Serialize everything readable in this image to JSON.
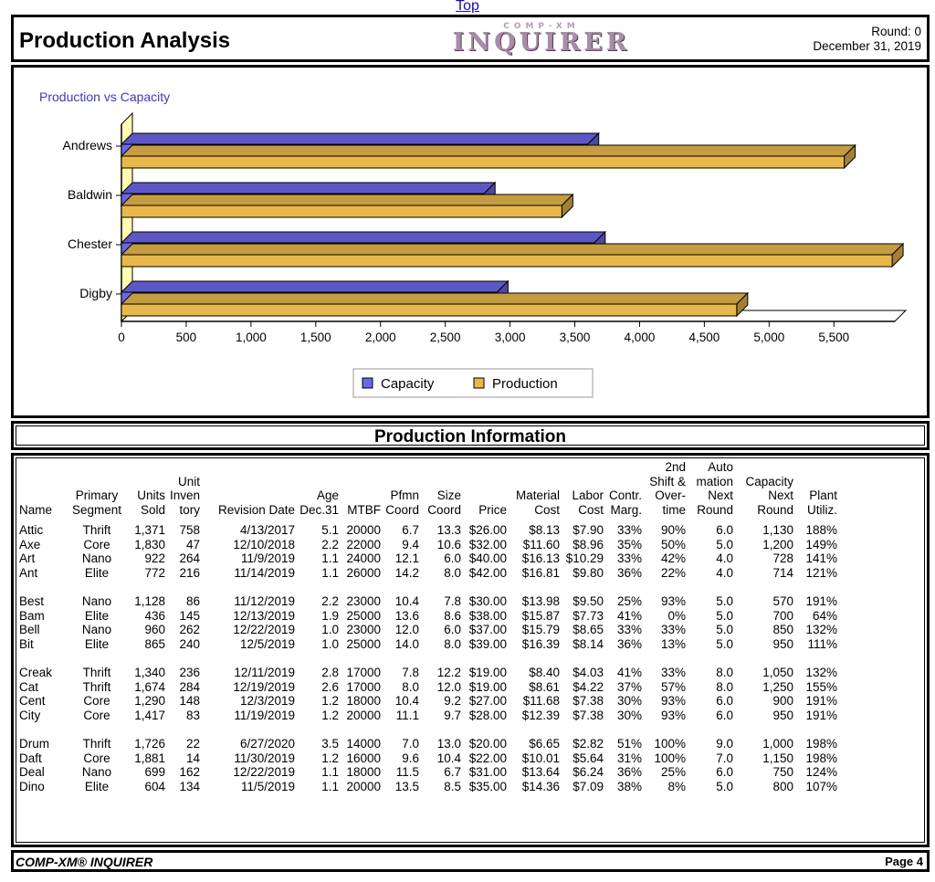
{
  "top_link": "Top",
  "header": {
    "title": "Production Analysis",
    "logo_small": "COMP-XM",
    "logo_big": "INQUIRER",
    "round": "Round: 0",
    "date": "December 31, 2019"
  },
  "chart_data": {
    "type": "bar",
    "orientation": "horizontal",
    "title": "Production vs Capacity",
    "categories": [
      "Andrews",
      "Baldwin",
      "Chester",
      "Digby"
    ],
    "series": [
      {
        "name": "Capacity",
        "color": "#6b68e8",
        "values": [
          3600,
          2800,
          3650,
          2900
        ]
      },
      {
        "name": "Production",
        "color": "#e8b84a",
        "values": [
          5580,
          3400,
          5950,
          4750
        ]
      }
    ],
    "xlim": [
      0,
      5900
    ],
    "xticks": [
      "0",
      "500",
      "1,000",
      "1,500",
      "2,000",
      "2,500",
      "3,000",
      "3,500",
      "4,000",
      "4,500",
      "5,000",
      "5,500"
    ],
    "xtick_values": [
      0,
      500,
      1000,
      1500,
      2000,
      2500,
      3000,
      3500,
      4000,
      4500,
      5000,
      5500
    ],
    "legend": [
      "Capacity",
      "Production"
    ],
    "legend_position": "bottom"
  },
  "info_title": "Production Information",
  "table": {
    "headers": {
      "name": "Name",
      "segment": [
        "Primary",
        "Segment"
      ],
      "units": [
        "Units",
        "Sold"
      ],
      "inventory": [
        "Unit",
        "Inven",
        "tory"
      ],
      "revision": "Revision Date",
      "age": [
        "Age",
        "Dec.31"
      ],
      "mtbf": "MTBF",
      "pfmn": [
        "Pfmn",
        "Coord"
      ],
      "size": [
        "Size",
        "Coord"
      ],
      "price": "Price",
      "material": [
        "Material",
        "Cost"
      ],
      "labor": [
        "Labor",
        "Cost"
      ],
      "contr": [
        "Contr.",
        "Marg."
      ],
      "shift": [
        "2nd",
        "Shift &",
        "Over-",
        "time"
      ],
      "auto": [
        "Auto",
        "mation",
        "Next",
        "Round"
      ],
      "capacity": [
        "Capacity",
        "Next",
        "Round"
      ],
      "plant": [
        "Plant",
        "Utiliz."
      ]
    },
    "groups": [
      [
        [
          "Attic",
          "Thrift",
          "1,371",
          "758",
          "4/13/2017",
          "5.1",
          "20000",
          "6.7",
          "13.3",
          "$26.00",
          "$8.13",
          "$7.90",
          "33%",
          "90%",
          "6.0",
          "1,130",
          "188%"
        ],
        [
          "Axe",
          "Core",
          "1,830",
          "47",
          "12/10/2018",
          "2.2",
          "22000",
          "9.4",
          "10.6",
          "$32.00",
          "$11.60",
          "$8.96",
          "35%",
          "50%",
          "5.0",
          "1,200",
          "149%"
        ],
        [
          "Art",
          "Nano",
          "922",
          "264",
          "11/9/2019",
          "1.1",
          "24000",
          "12.1",
          "6.0",
          "$40.00",
          "$16.13",
          "$10.29",
          "33%",
          "42%",
          "4.0",
          "728",
          "141%"
        ],
        [
          "Ant",
          "Elite",
          "772",
          "216",
          "11/14/2019",
          "1.1",
          "26000",
          "14.2",
          "8.0",
          "$42.00",
          "$16.81",
          "$9.80",
          "36%",
          "22%",
          "4.0",
          "714",
          "121%"
        ]
      ],
      [
        [
          "Best",
          "Nano",
          "1,128",
          "86",
          "11/12/2019",
          "2.2",
          "23000",
          "10.4",
          "7.8",
          "$30.00",
          "$13.98",
          "$9.50",
          "25%",
          "93%",
          "5.0",
          "570",
          "191%"
        ],
        [
          "Bam",
          "Elite",
          "436",
          "145",
          "12/13/2019",
          "1.9",
          "25000",
          "13.6",
          "8.6",
          "$38.00",
          "$15.87",
          "$7.73",
          "41%",
          "0%",
          "5.0",
          "700",
          "64%"
        ],
        [
          "Bell",
          "Nano",
          "960",
          "262",
          "12/22/2019",
          "1.0",
          "23000",
          "12.0",
          "6.0",
          "$37.00",
          "$15.79",
          "$8.65",
          "33%",
          "33%",
          "5.0",
          "850",
          "132%"
        ],
        [
          "Bit",
          "Elite",
          "865",
          "240",
          "12/5/2019",
          "1.0",
          "25000",
          "14.0",
          "8.0",
          "$39.00",
          "$16.39",
          "$8.14",
          "36%",
          "13%",
          "5.0",
          "950",
          "111%"
        ]
      ],
      [
        [
          "Creak",
          "Thrift",
          "1,340",
          "236",
          "12/11/2019",
          "2.8",
          "17000",
          "7.8",
          "12.2",
          "$19.00",
          "$8.40",
          "$4.03",
          "41%",
          "33%",
          "8.0",
          "1,050",
          "132%"
        ],
        [
          "Cat",
          "Thrift",
          "1,674",
          "284",
          "12/19/2019",
          "2.6",
          "17000",
          "8.0",
          "12.0",
          "$19.00",
          "$8.61",
          "$4.22",
          "37%",
          "57%",
          "8.0",
          "1,250",
          "155%"
        ],
        [
          "Cent",
          "Core",
          "1,290",
          "148",
          "12/3/2019",
          "1.2",
          "18000",
          "10.4",
          "9.2",
          "$27.00",
          "$11.68",
          "$7.38",
          "30%",
          "93%",
          "6.0",
          "900",
          "191%"
        ],
        [
          "City",
          "Core",
          "1,417",
          "83",
          "11/19/2019",
          "1.2",
          "20000",
          "11.1",
          "9.7",
          "$28.00",
          "$12.39",
          "$7.38",
          "30%",
          "93%",
          "6.0",
          "950",
          "191%"
        ]
      ],
      [
        [
          "Drum",
          "Thrift",
          "1,726",
          "22",
          "6/27/2020",
          "3.5",
          "14000",
          "7.0",
          "13.0",
          "$20.00",
          "$6.65",
          "$2.82",
          "51%",
          "100%",
          "9.0",
          "1,000",
          "198%"
        ],
        [
          "Daft",
          "Core",
          "1,881",
          "14",
          "11/30/2019",
          "1.2",
          "16000",
          "9.6",
          "10.4",
          "$22.00",
          "$10.01",
          "$5.64",
          "31%",
          "100%",
          "7.0",
          "1,150",
          "198%"
        ],
        [
          "Deal",
          "Nano",
          "699",
          "162",
          "12/22/2019",
          "1.1",
          "18000",
          "11.5",
          "6.7",
          "$31.00",
          "$13.64",
          "$6.24",
          "36%",
          "25%",
          "6.0",
          "750",
          "124%"
        ],
        [
          "Dino",
          "Elite",
          "604",
          "134",
          "11/5/2019",
          "1.1",
          "20000",
          "13.5",
          "8.5",
          "$35.00",
          "$14.36",
          "$7.09",
          "38%",
          "8%",
          "5.0",
          "800",
          "107%"
        ]
      ]
    ]
  },
  "footer": {
    "left": "COMP-XM® INQUIRER",
    "right": "Page 4"
  }
}
